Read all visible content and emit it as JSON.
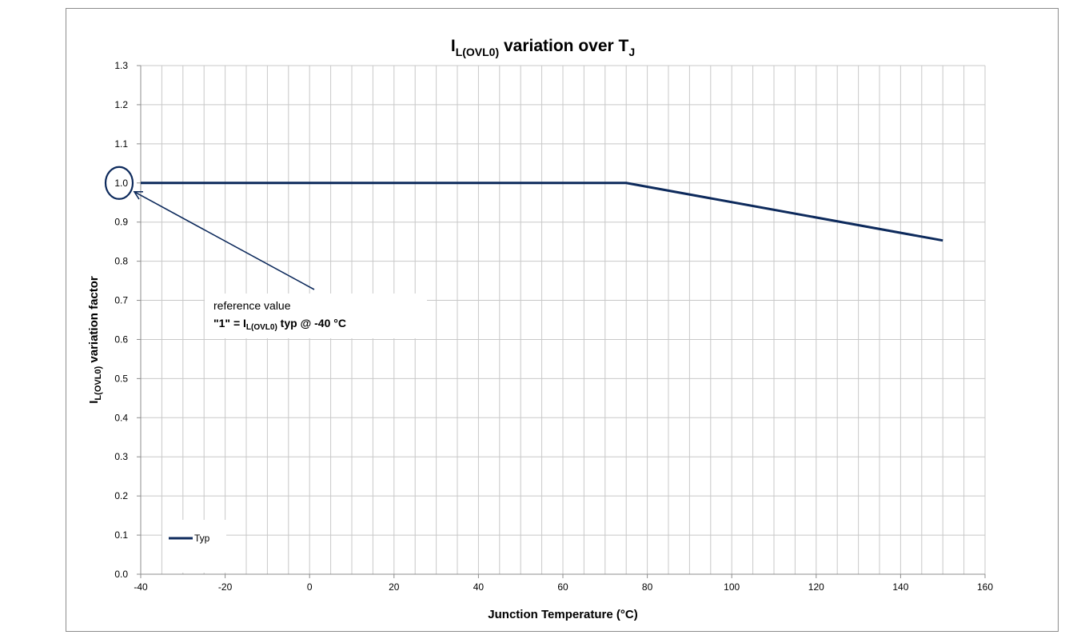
{
  "chart_data": {
    "type": "line",
    "title_main": "I",
    "title_sub": "L(OVL0)",
    "title_rest": " variation over T",
    "title_sub2": "J",
    "ylabel_main": "I",
    "ylabel_sub": "L(OVL0)",
    "ylabel_rest": " variation factor",
    "xlabel": "Junction Temperature (°C)",
    "xlim": [
      -40,
      160
    ],
    "ylim": [
      0,
      1.3
    ],
    "x_ticks": [
      "-40",
      "-20",
      "0",
      "20",
      "40",
      "60",
      "80",
      "100",
      "120",
      "140",
      "160"
    ],
    "y_ticks": [
      "0.0",
      "0.1",
      "0.2",
      "0.3",
      "0.4",
      "0.5",
      "0.6",
      "0.7",
      "0.8",
      "0.9",
      "1.0",
      "1.1",
      "1.2",
      "1.3"
    ],
    "grid": true,
    "legend_position": "bottom-left",
    "series": [
      {
        "name": "Typ",
        "x": [
          -40,
          75,
          150
        ],
        "y": [
          1.0,
          1.0,
          0.853
        ],
        "color": "#0d2a5c"
      }
    ],
    "annotation": {
      "line1": "reference value",
      "line2_pre": "\"1\" = I",
      "line2_sub": "L(OVL0)",
      "line2_post": " typ @ -40 °C",
      "target_x": -40,
      "target_y": 1.0
    }
  }
}
